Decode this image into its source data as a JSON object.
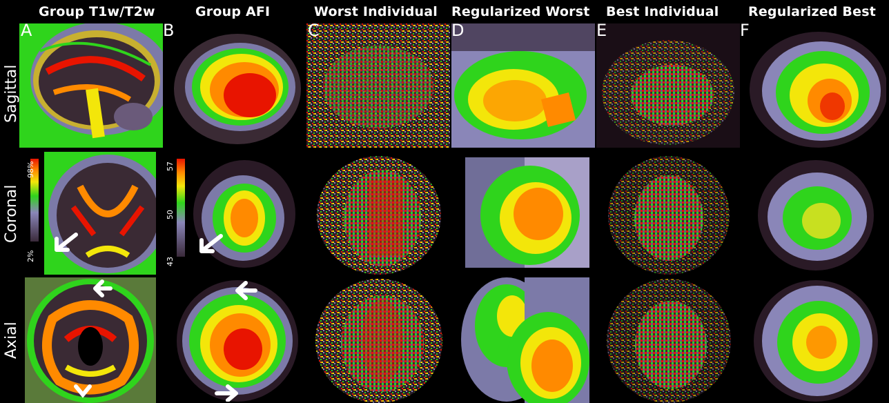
{
  "columns": [
    {
      "letter": "A",
      "title": "Group T1w/T2w"
    },
    {
      "letter": "B",
      "title": "Group AFI"
    },
    {
      "letter": "C",
      "title": "Worst Individual"
    },
    {
      "letter": "D",
      "title": "Regularized Worst"
    },
    {
      "letter": "E",
      "title": "Best Individual"
    },
    {
      "letter": "F",
      "title": "Regularized Best"
    }
  ],
  "rows": [
    "Sagittal",
    "Coronal",
    "Axial"
  ],
  "colorbar_a": {
    "top": "98%",
    "bottom": "2%"
  },
  "colorbar_b": {
    "top": "57",
    "mid": "50",
    "bottom": "43"
  },
  "colors": {
    "background": "#000000",
    "low": "#7c7aa8",
    "green": "#2fd41c",
    "yellow": "#f3e60a",
    "orange": "#ff8a00",
    "red": "#e81400",
    "arrow": "#ffffff"
  }
}
